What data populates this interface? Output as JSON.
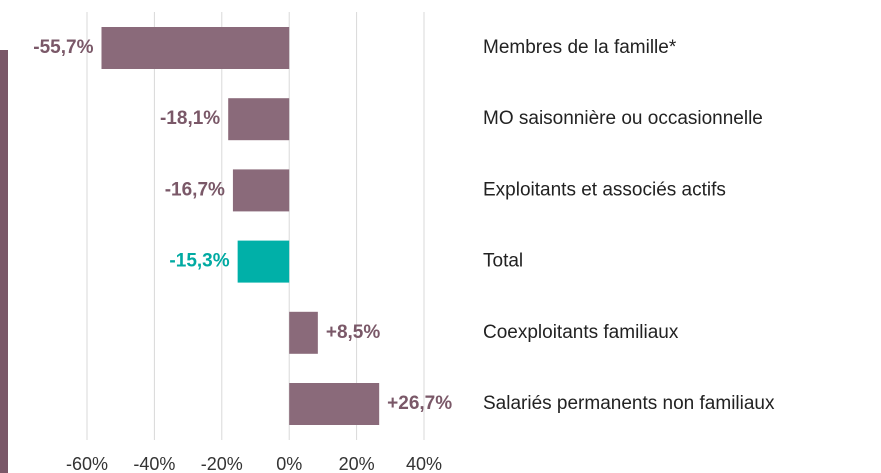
{
  "chart_data": {
    "type": "hbar",
    "categories": [
      "Membres de la famille*",
      "MO saisonnière ou occasionnelle",
      "Exploitants et associés actifs",
      "Total",
      "Coexploitants familiaux",
      "Salariés permanents non familiaux"
    ],
    "values": [
      -55.7,
      -18.1,
      -16.7,
      -15.3,
      8.5,
      26.7
    ],
    "value_labels": [
      "-55,7%",
      "-18,1%",
      "-16,7%",
      "-15,3%",
      "+8,5%",
      "+26,7%"
    ],
    "colors": [
      "#8a6a7a",
      "#8a6a7a",
      "#8a6a7a",
      "#00b0a8",
      "#8a6a7a",
      "#8a6a7a"
    ],
    "label_colors": [
      "#7a5868",
      "#7a5868",
      "#7a5868",
      "#00aaa2",
      "#7a5868",
      "#7a5868"
    ],
    "xlim": [
      -60,
      40
    ],
    "xticks": [
      {
        "value": -60,
        "label": "-60%"
      },
      {
        "value": -40,
        "label": "-40%"
      },
      {
        "value": -20,
        "label": "-20%"
      },
      {
        "value": 0,
        "label": "0%"
      },
      {
        "value": 20,
        "label": "20%"
      },
      {
        "value": 40,
        "label": "40%"
      }
    ],
    "grid": true
  }
}
